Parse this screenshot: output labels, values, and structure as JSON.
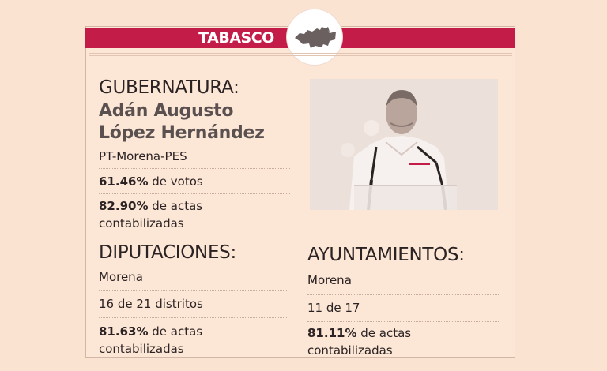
{
  "state": "TABASCO",
  "governor": {
    "heading": "GUBERNATURA:",
    "name_line1": "Adán Augusto",
    "name_line2": "López Hernández",
    "party": "PT-Morena-PES",
    "votes_pct": "61.46%",
    "votes_label": " de votos",
    "actas_pct": "82.90%",
    "actas_label": " de actas contabilizadas"
  },
  "diputaciones": {
    "heading": "DIPUTACIONES:",
    "party": "Morena",
    "districts": "16 de 21 distritos",
    "actas_pct": "81.63%",
    "actas_label": " de actas contabilizadas"
  },
  "ayuntamientos": {
    "heading": "AYUNTAMIENTOS:",
    "party": "Morena",
    "count": "11 de 17",
    "actas_pct": "81.11%",
    "actas_label": " de actas contabilizadas"
  },
  "icons": {
    "state_map": "tabasco-map-icon",
    "photo": "candidate-photo"
  },
  "colors": {
    "banner": "#c41c49",
    "background": "#fbe3d2"
  }
}
